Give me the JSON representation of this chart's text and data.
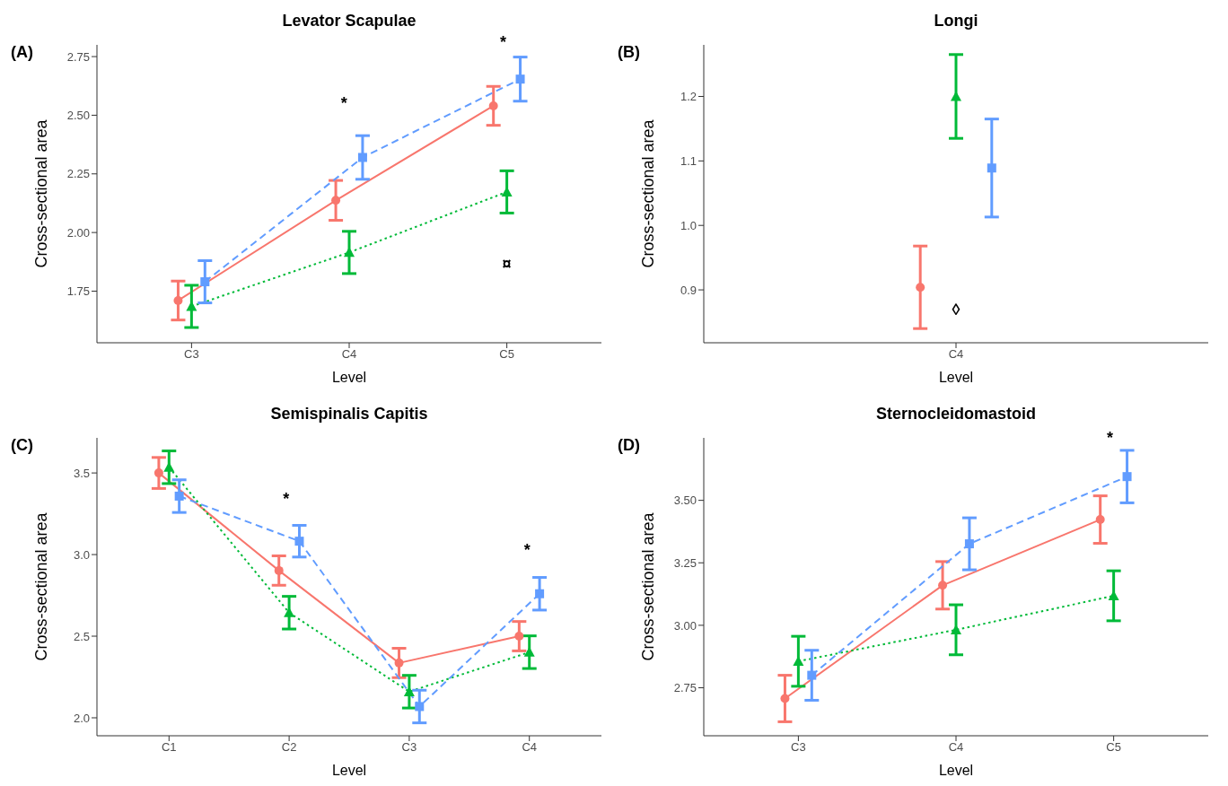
{
  "chart_data": [
    {
      "type": "line",
      "title": "Levator Scapulae",
      "xlabel": "Level",
      "ylabel": "Cross-sectional area",
      "categories": [
        "C3",
        "C4",
        "C5"
      ],
      "series": [
        {
          "color": "#f8766d",
          "marker": "circle",
          "line_style": "solid",
          "values": [
            1.71,
            2.137,
            2.54
          ],
          "errors": [
            0.083,
            0.085,
            0.083
          ]
        },
        {
          "color": "#00ba38",
          "marker": "triangle",
          "line_style": "dotted",
          "values": [
            1.685,
            1.915,
            2.173
          ],
          "errors": [
            0.09,
            0.09,
            0.09
          ]
        },
        {
          "color": "#619cff",
          "marker": "square",
          "line_style": "dashed",
          "values": [
            1.79,
            2.32,
            2.654
          ],
          "errors": [
            0.09,
            0.093,
            0.094
          ]
        }
      ],
      "ylim": [
        1.53,
        2.8
      ],
      "yticks": [
        1.75,
        {
          "value": 2.0,
          "label": "2.00"
        },
        2.25,
        {
          "value": 2.5,
          "label": "2.50"
        },
        2.75
      ],
      "grid": false,
      "annotations": [
        "(A)",
        "*",
        "*",
        "¤"
      ]
    },
    {
      "type": "line",
      "title": "Longi",
      "xlabel": "Level",
      "ylabel": "Cross-sectional area",
      "categories": [
        "C4"
      ],
      "series": [
        {
          "color": "#f8766d",
          "marker": "circle",
          "values": [
            0.904
          ],
          "errors": [
            0.064
          ]
        },
        {
          "color": "#00ba38",
          "marker": "triangle",
          "values": [
            1.2
          ],
          "errors": [
            0.065
          ]
        },
        {
          "color": "#619cff",
          "marker": "square",
          "values": [
            1.089
          ],
          "errors": [
            0.076
          ]
        }
      ],
      "ylim": [
        0.818,
        1.28
      ],
      "yticks": [
        0.9,
        {
          "value": 1.0,
          "label": "1.0"
        },
        1.1,
        1.2
      ],
      "grid": false,
      "annotations": [
        "(B)",
        "◊"
      ]
    },
    {
      "type": "line",
      "title": "Semispinalis Capitis",
      "xlabel": "Level",
      "ylabel": "Cross-sectional area",
      "categories": [
        "C1",
        "C2",
        "C3",
        "C4"
      ],
      "series": [
        {
          "color": "#f8766d",
          "marker": "circle",
          "line_style": "solid",
          "values": [
            3.5,
            2.902,
            2.336,
            2.5
          ],
          "errors": [
            0.095,
            0.09,
            0.09,
            0.09
          ]
        },
        {
          "color": "#00ba38",
          "marker": "triangle",
          "line_style": "dotted",
          "values": [
            3.535,
            2.644,
            2.16,
            2.402
          ],
          "errors": [
            0.1,
            0.1,
            0.1,
            0.1
          ]
        },
        {
          "color": "#619cff",
          "marker": "square",
          "line_style": "dashed",
          "values": [
            3.358,
            3.082,
            2.069,
            2.76
          ],
          "errors": [
            0.1,
            0.097,
            0.1,
            0.1
          ]
        }
      ],
      "ylim": [
        1.89,
        3.715
      ],
      "yticks": [
        {
          "value": 2.0,
          "label": "2.0"
        },
        2.5,
        {
          "value": 3.0,
          "label": "3.0"
        },
        3.5
      ],
      "grid": false,
      "annotations": [
        "(C)",
        "*",
        "*"
      ]
    },
    {
      "type": "line",
      "title": "Sternocleidomastoid",
      "xlabel": "Level",
      "ylabel": "Cross-sectional area",
      "categories": [
        "C3",
        "C4",
        "C5"
      ],
      "series": [
        {
          "color": "#f8766d",
          "marker": "circle",
          "line_style": "solid",
          "values": [
            2.707,
            3.16,
            3.423
          ],
          "errors": [
            0.093,
            0.095,
            0.095
          ]
        },
        {
          "color": "#00ba38",
          "marker": "triangle",
          "line_style": "dotted",
          "values": [
            2.856,
            2.982,
            3.118
          ],
          "errors": [
            0.1,
            0.1,
            0.1
          ]
        },
        {
          "color": "#619cff",
          "marker": "square",
          "line_style": "dashed",
          "values": [
            2.8,
            3.326,
            3.595
          ],
          "errors": [
            0.1,
            0.104,
            0.105
          ]
        }
      ],
      "ylim": [
        2.558,
        3.75
      ],
      "yticks": [
        2.75,
        {
          "value": 3.0,
          "label": "3.00"
        },
        3.25,
        {
          "value": 3.5,
          "label": "3.50"
        }
      ],
      "grid": false,
      "annotations": [
        "(D)",
        "*"
      ]
    }
  ]
}
